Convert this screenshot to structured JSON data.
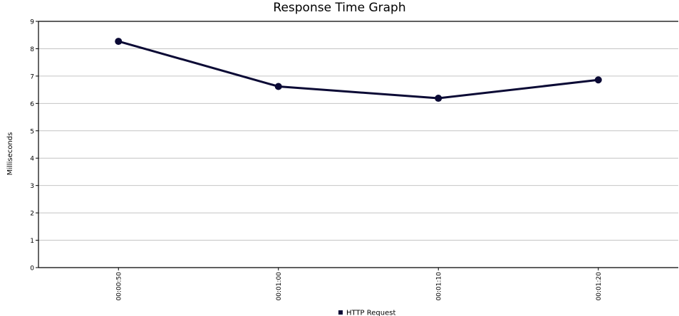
{
  "chart_data": {
    "type": "line",
    "title": "Response Time Graph",
    "ylabel": "Milliseconds",
    "xlabel": "",
    "categories": [
      "00:00:50",
      "00:01:00",
      "00:01:10",
      "00:01:20"
    ],
    "ylim": [
      0,
      9
    ],
    "yticks": [
      0,
      1,
      2,
      3,
      4,
      5,
      6,
      7,
      8,
      9
    ],
    "grid": true,
    "legend_position": "bottom",
    "series": [
      {
        "name": "HTTP Request",
        "values": [
          8.27,
          6.62,
          6.19,
          6.86
        ],
        "color": "#0b0a35"
      }
    ]
  }
}
